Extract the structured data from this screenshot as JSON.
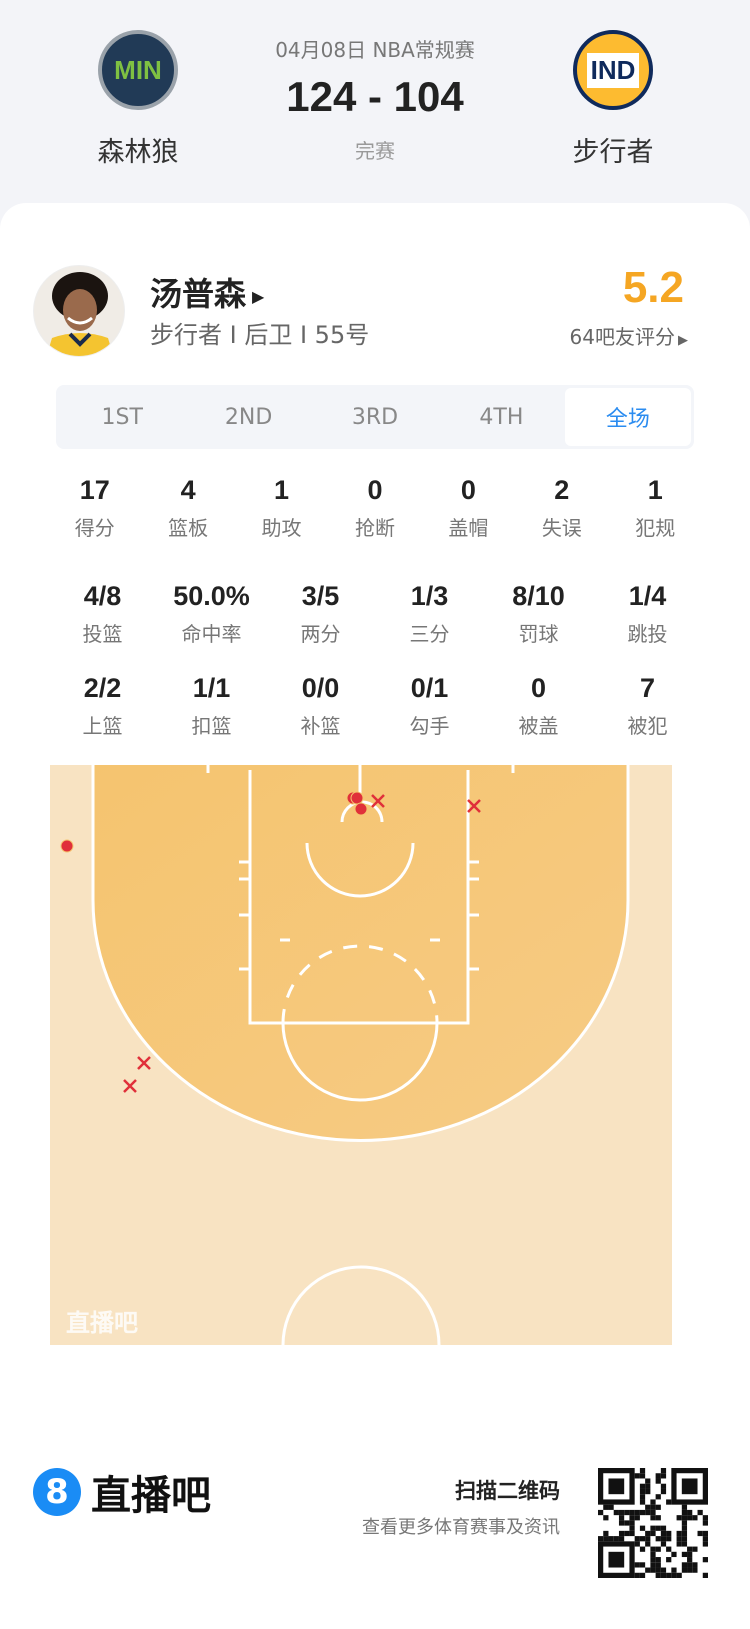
{
  "game": {
    "date_league": "04月08日 NBA常规赛",
    "score": "124 - 104",
    "status": "完赛",
    "home": {
      "name": "森林狼",
      "logo_text": "MIN"
    },
    "away": {
      "name": "步行者",
      "logo_text": "IND"
    }
  },
  "player": {
    "name": "汤普森",
    "info": "步行者 I 后卫 I 55号",
    "rating": "5.2",
    "rating_count": "64吧友评分"
  },
  "tabs": [
    {
      "label": "1ST"
    },
    {
      "label": "2ND"
    },
    {
      "label": "3RD"
    },
    {
      "label": "4TH"
    },
    {
      "label": "全场",
      "active": true
    }
  ],
  "stats_rows": [
    [
      {
        "v": "17",
        "l": "得分"
      },
      {
        "v": "4",
        "l": "篮板"
      },
      {
        "v": "1",
        "l": "助攻"
      },
      {
        "v": "0",
        "l": "抢断"
      },
      {
        "v": "0",
        "l": "盖帽"
      },
      {
        "v": "2",
        "l": "失误"
      },
      {
        "v": "1",
        "l": "犯规"
      }
    ],
    [
      {
        "v": "4/8",
        "l": "投篮"
      },
      {
        "v": "50.0%",
        "l": "命中率"
      },
      {
        "v": "3/5",
        "l": "两分"
      },
      {
        "v": "1/3",
        "l": "三分"
      },
      {
        "v": "8/10",
        "l": "罚球"
      },
      {
        "v": "1/4",
        "l": "跳投"
      }
    ],
    [
      {
        "v": "2/2",
        "l": "上篮"
      },
      {
        "v": "1/1",
        "l": "扣篮"
      },
      {
        "v": "0/0",
        "l": "补篮"
      },
      {
        "v": "0/1",
        "l": "勾手"
      },
      {
        "v": "0",
        "l": "被盖"
      },
      {
        "v": "7",
        "l": "被犯"
      }
    ]
  ],
  "shot_chart": {
    "made_color": "#e0303a",
    "miss_color": "#e0303a",
    "watermark": "直播吧",
    "shots": [
      {
        "result": "made",
        "zone": "rim"
      },
      {
        "result": "made",
        "zone": "rim"
      },
      {
        "result": "made",
        "zone": "rim"
      },
      {
        "result": "made",
        "zone": "left-corner-three"
      },
      {
        "result": "miss",
        "zone": "rim"
      },
      {
        "result": "miss",
        "zone": "right-baseline"
      },
      {
        "result": "miss",
        "zone": "left-wing-three"
      },
      {
        "result": "miss",
        "zone": "left-wing-three"
      }
    ]
  },
  "footer": {
    "brand_badge": "8",
    "brand": "直播吧",
    "scan_title": "扫描二维码",
    "scan_sub": "查看更多体育赛事及资讯"
  },
  "colors": {
    "accent": "#2b8cf0",
    "rating": "#f5a623",
    "court_inner": "#f5c46f",
    "court_outer": "#f8e3c2"
  }
}
